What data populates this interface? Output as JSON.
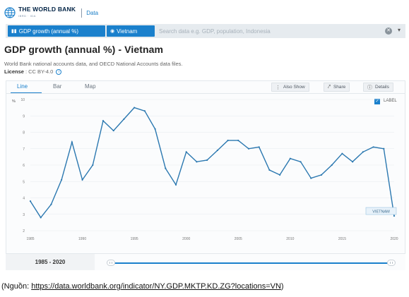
{
  "header": {
    "brand": "THE WORLD BANK",
    "brand_sub": "IBRD · IDA",
    "section": "Data"
  },
  "search": {
    "chips": [
      "GDP growth (annual %)",
      "Vietnam"
    ],
    "placeholder": "Search data e.g. GDP, population, Indonesia"
  },
  "page": {
    "title": "GDP growth (annual %) - Vietnam",
    "source": "World Bank national accounts data, and OECD National Accounts data files.",
    "license_label": "License",
    "license_value": ": CC BY-4.0"
  },
  "tabs": [
    "Line",
    "Bar",
    "Map"
  ],
  "actions": {
    "also_show": "Also Show",
    "share": "Share",
    "details": "Details"
  },
  "legend": {
    "label": "LABEL"
  },
  "range": {
    "label": "1985 - 2020"
  },
  "caption": {
    "prefix": "(Nguồn: ",
    "link": "https://data.worldbank.org/indicator/NY.GDP.MKTP.KD.ZG?locations=VN",
    "suffix": ")"
  },
  "colors": {
    "accent": "#1a80cc",
    "line": "#2b78b0"
  },
  "chart_data": {
    "type": "line",
    "ylabel": "%",
    "ylim": [
      2,
      10
    ],
    "yticks": [
      2,
      3,
      4,
      5,
      6,
      7,
      8,
      9,
      10
    ],
    "xticks": [
      1985,
      1990,
      1995,
      2000,
      2005,
      2010,
      2015,
      2020
    ],
    "xlim": [
      1985,
      2020
    ],
    "grid": true,
    "series": [
      {
        "name": "VIETNAM",
        "x": [
          1985,
          1986,
          1987,
          1988,
          1989,
          1990,
          1991,
          1992,
          1993,
          1994,
          1995,
          1996,
          1997,
          1998,
          1999,
          2000,
          2001,
          2002,
          2003,
          2004,
          2005,
          2006,
          2007,
          2008,
          2009,
          2010,
          2011,
          2012,
          2013,
          2014,
          2015,
          2016,
          2017,
          2018,
          2019,
          2020
        ],
        "values": [
          3.8,
          2.8,
          3.6,
          5.1,
          7.4,
          5.1,
          6.0,
          8.7,
          8.1,
          8.8,
          9.5,
          9.3,
          8.2,
          5.8,
          4.8,
          6.8,
          6.2,
          6.3,
          6.9,
          7.5,
          7.5,
          7.0,
          7.1,
          5.7,
          5.4,
          6.4,
          6.2,
          5.2,
          5.4,
          6.0,
          6.7,
          6.2,
          6.8,
          7.1,
          7.0,
          2.9
        ]
      }
    ]
  }
}
